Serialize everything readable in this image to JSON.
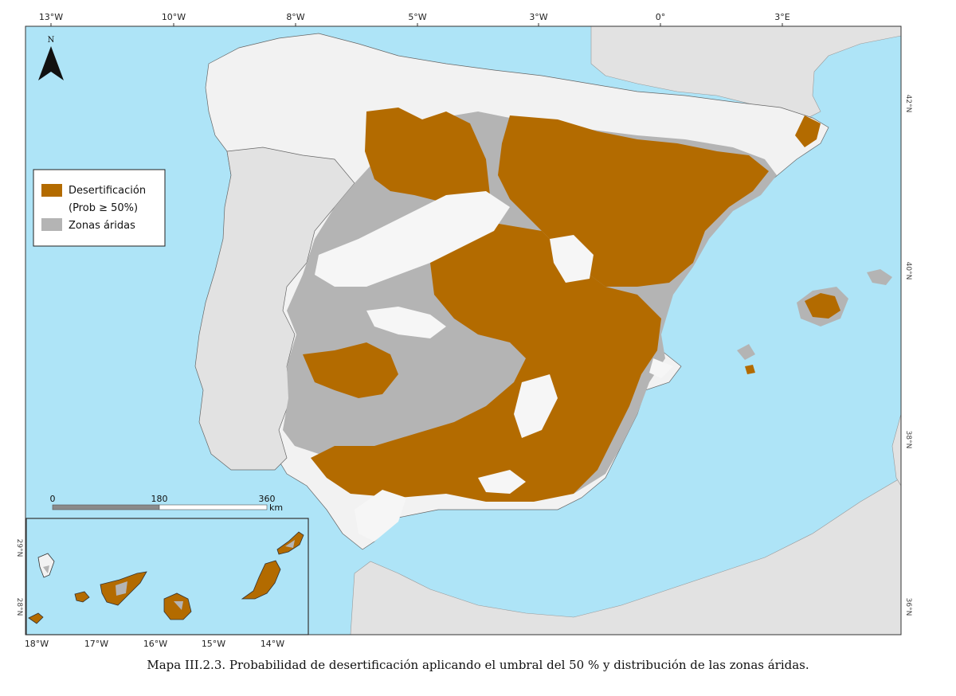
{
  "map": {
    "lon_ticks_top": [
      "13°W",
      "10°W",
      "8°W",
      "5°W",
      "3°W",
      "0°",
      "3°E"
    ],
    "lat_ticks_right": [
      "42°N",
      "40°N",
      "38°N",
      "36°N"
    ],
    "inset_lon_ticks": [
      "18°W",
      "17°W",
      "16°W",
      "15°W",
      "14°W"
    ],
    "inset_lat_ticks": [
      "29°N",
      "28°N"
    ],
    "north_label": "N",
    "legend": {
      "items": [
        {
          "label": "Desertificación",
          "label2": "(Prob ≥ 50%)",
          "color": "#b36b00"
        },
        {
          "label": "Zonas áridas",
          "color": "#b4b4b4"
        }
      ]
    },
    "scale_bar": {
      "labels": [
        "0",
        "180",
        "360"
      ],
      "unit": "km"
    },
    "colors": {
      "sea": "#aee4f7",
      "land_other": "#e2e2e2",
      "land_iberia": "#f4f4f4",
      "desertification": "#b36b00",
      "arid": "#b4b4b4"
    }
  },
  "caption": "Mapa III.2.3. Probabilidad de desertificación aplicando el umbral del 50 % y distribución de las zonas áridas."
}
